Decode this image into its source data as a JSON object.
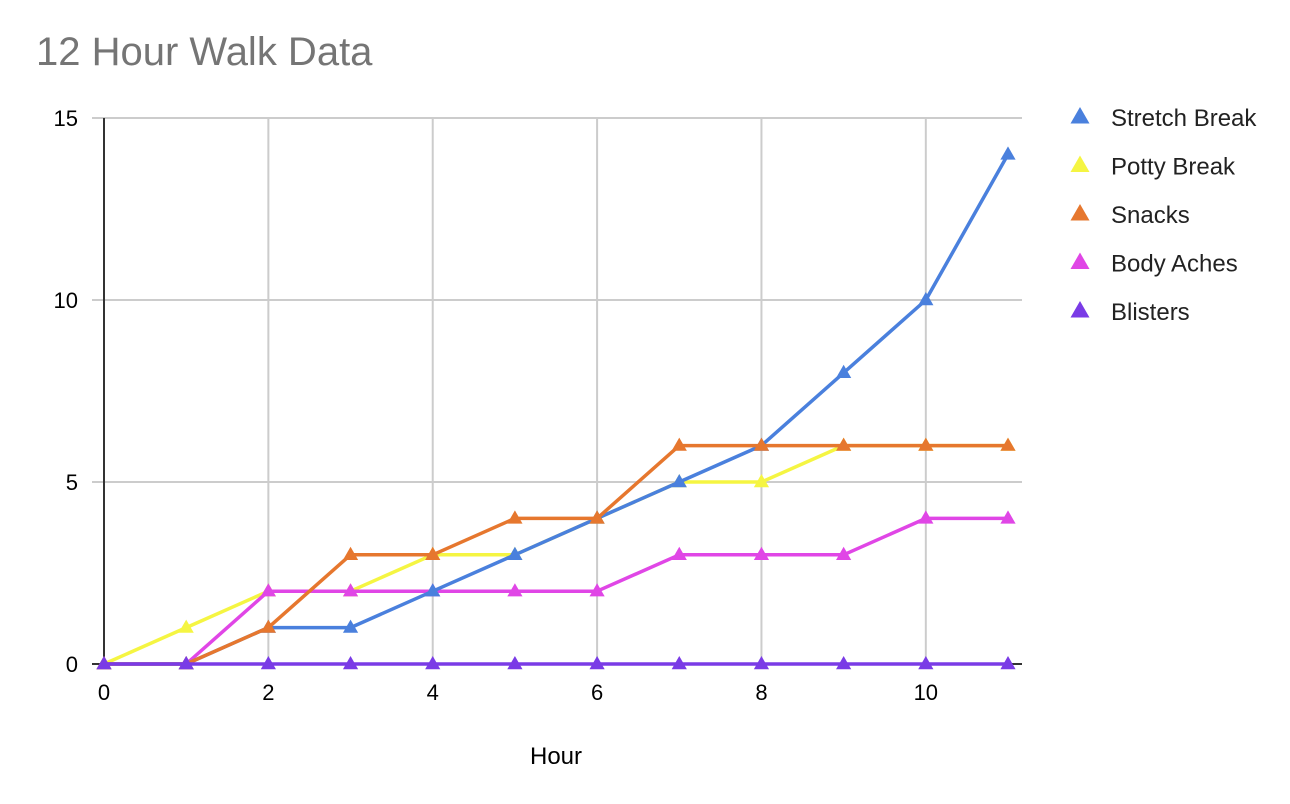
{
  "chart_data": {
    "type": "line",
    "title": "12 Hour Walk Data",
    "xlabel": "Hour",
    "ylabel": "",
    "xlim": [
      0,
      11
    ],
    "ylim": [
      0,
      15
    ],
    "xticks": [
      0,
      2,
      4,
      6,
      8,
      10
    ],
    "yticks": [
      0,
      5,
      10,
      15
    ],
    "grid": true,
    "legend_position": "right",
    "marker": "triangle",
    "x": [
      0,
      1,
      2,
      3,
      4,
      5,
      6,
      7,
      8,
      9,
      10,
      11
    ],
    "series": [
      {
        "name": "Potty Break",
        "color": "#f5f542",
        "values": [
          0,
          1,
          2,
          2,
          3,
          3,
          4,
          5,
          5,
          6,
          6,
          6
        ]
      },
      {
        "name": "Body Aches",
        "color": "#e046e6",
        "values": [
          0,
          0,
          2,
          2,
          2,
          2,
          2,
          3,
          3,
          3,
          4,
          4
        ]
      },
      {
        "name": "Stretch Break",
        "color": "#4a80dd",
        "values": [
          0,
          0,
          1,
          1,
          2,
          3,
          4,
          5,
          6,
          8,
          10,
          14
        ]
      },
      {
        "name": "Snacks",
        "color": "#e6772e",
        "values": [
          0,
          0,
          1,
          3,
          3,
          4,
          4,
          6,
          6,
          6,
          6,
          6
        ]
      },
      {
        "name": "Blisters",
        "color": "#7a3be6",
        "values": [
          0,
          0,
          0,
          0,
          0,
          0,
          0,
          0,
          0,
          0,
          0,
          0
        ]
      }
    ],
    "legend_order": [
      "Stretch Break",
      "Potty Break",
      "Snacks",
      "Body Aches",
      "Blisters"
    ]
  }
}
